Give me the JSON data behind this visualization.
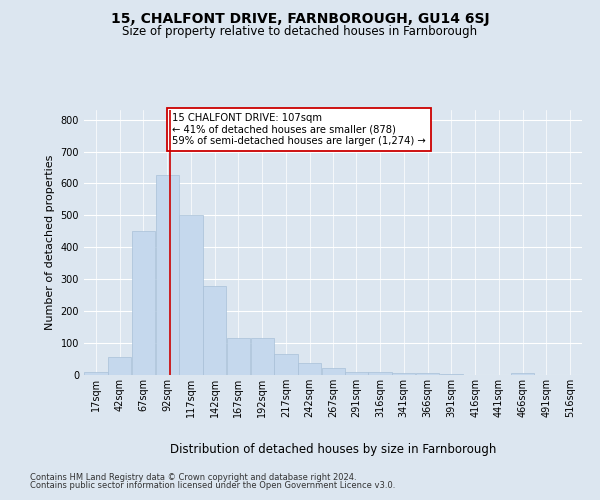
{
  "title": "15, CHALFONT DRIVE, FARNBOROUGH, GU14 6SJ",
  "subtitle": "Size of property relative to detached houses in Farnborough",
  "xlabel": "Distribution of detached houses by size in Farnborough",
  "ylabel": "Number of detached properties",
  "bin_labels": [
    "17sqm",
    "42sqm",
    "67sqm",
    "92sqm",
    "117sqm",
    "142sqm",
    "167sqm",
    "192sqm",
    "217sqm",
    "242sqm",
    "267sqm",
    "291sqm",
    "316sqm",
    "341sqm",
    "366sqm",
    "391sqm",
    "416sqm",
    "441sqm",
    "466sqm",
    "491sqm",
    "516sqm"
  ],
  "bin_edges": [
    17,
    42,
    67,
    92,
    117,
    142,
    167,
    192,
    217,
    242,
    267,
    291,
    316,
    341,
    366,
    391,
    416,
    441,
    466,
    491,
    516
  ],
  "bar_heights": [
    10,
    57,
    450,
    625,
    500,
    280,
    115,
    115,
    65,
    38,
    22,
    10,
    10,
    5,
    5,
    2,
    0,
    0,
    7,
    0,
    0
  ],
  "bar_color": "#c5d8ed",
  "bar_edgecolor": "#a8c0d8",
  "property_line_x": 107,
  "property_line_color": "#cc0000",
  "annotation_text": "15 CHALFONT DRIVE: 107sqm\n← 41% of detached houses are smaller (878)\n59% of semi-detached houses are larger (1,274) →",
  "annotation_box_facecolor": "#ffffff",
  "annotation_box_edgecolor": "#cc0000",
  "ylim": [
    0,
    830
  ],
  "yticks": [
    0,
    100,
    200,
    300,
    400,
    500,
    600,
    700,
    800
  ],
  "background_color": "#dce6f0",
  "plot_background_color": "#dce6f0",
  "footer_line1": "Contains HM Land Registry data © Crown copyright and database right 2024.",
  "footer_line2": "Contains public sector information licensed under the Open Government Licence v3.0.",
  "title_fontsize": 10,
  "subtitle_fontsize": 8.5,
  "ylabel_fontsize": 8,
  "xlabel_fontsize": 8.5,
  "tick_fontsize": 7,
  "footer_fontsize": 6
}
